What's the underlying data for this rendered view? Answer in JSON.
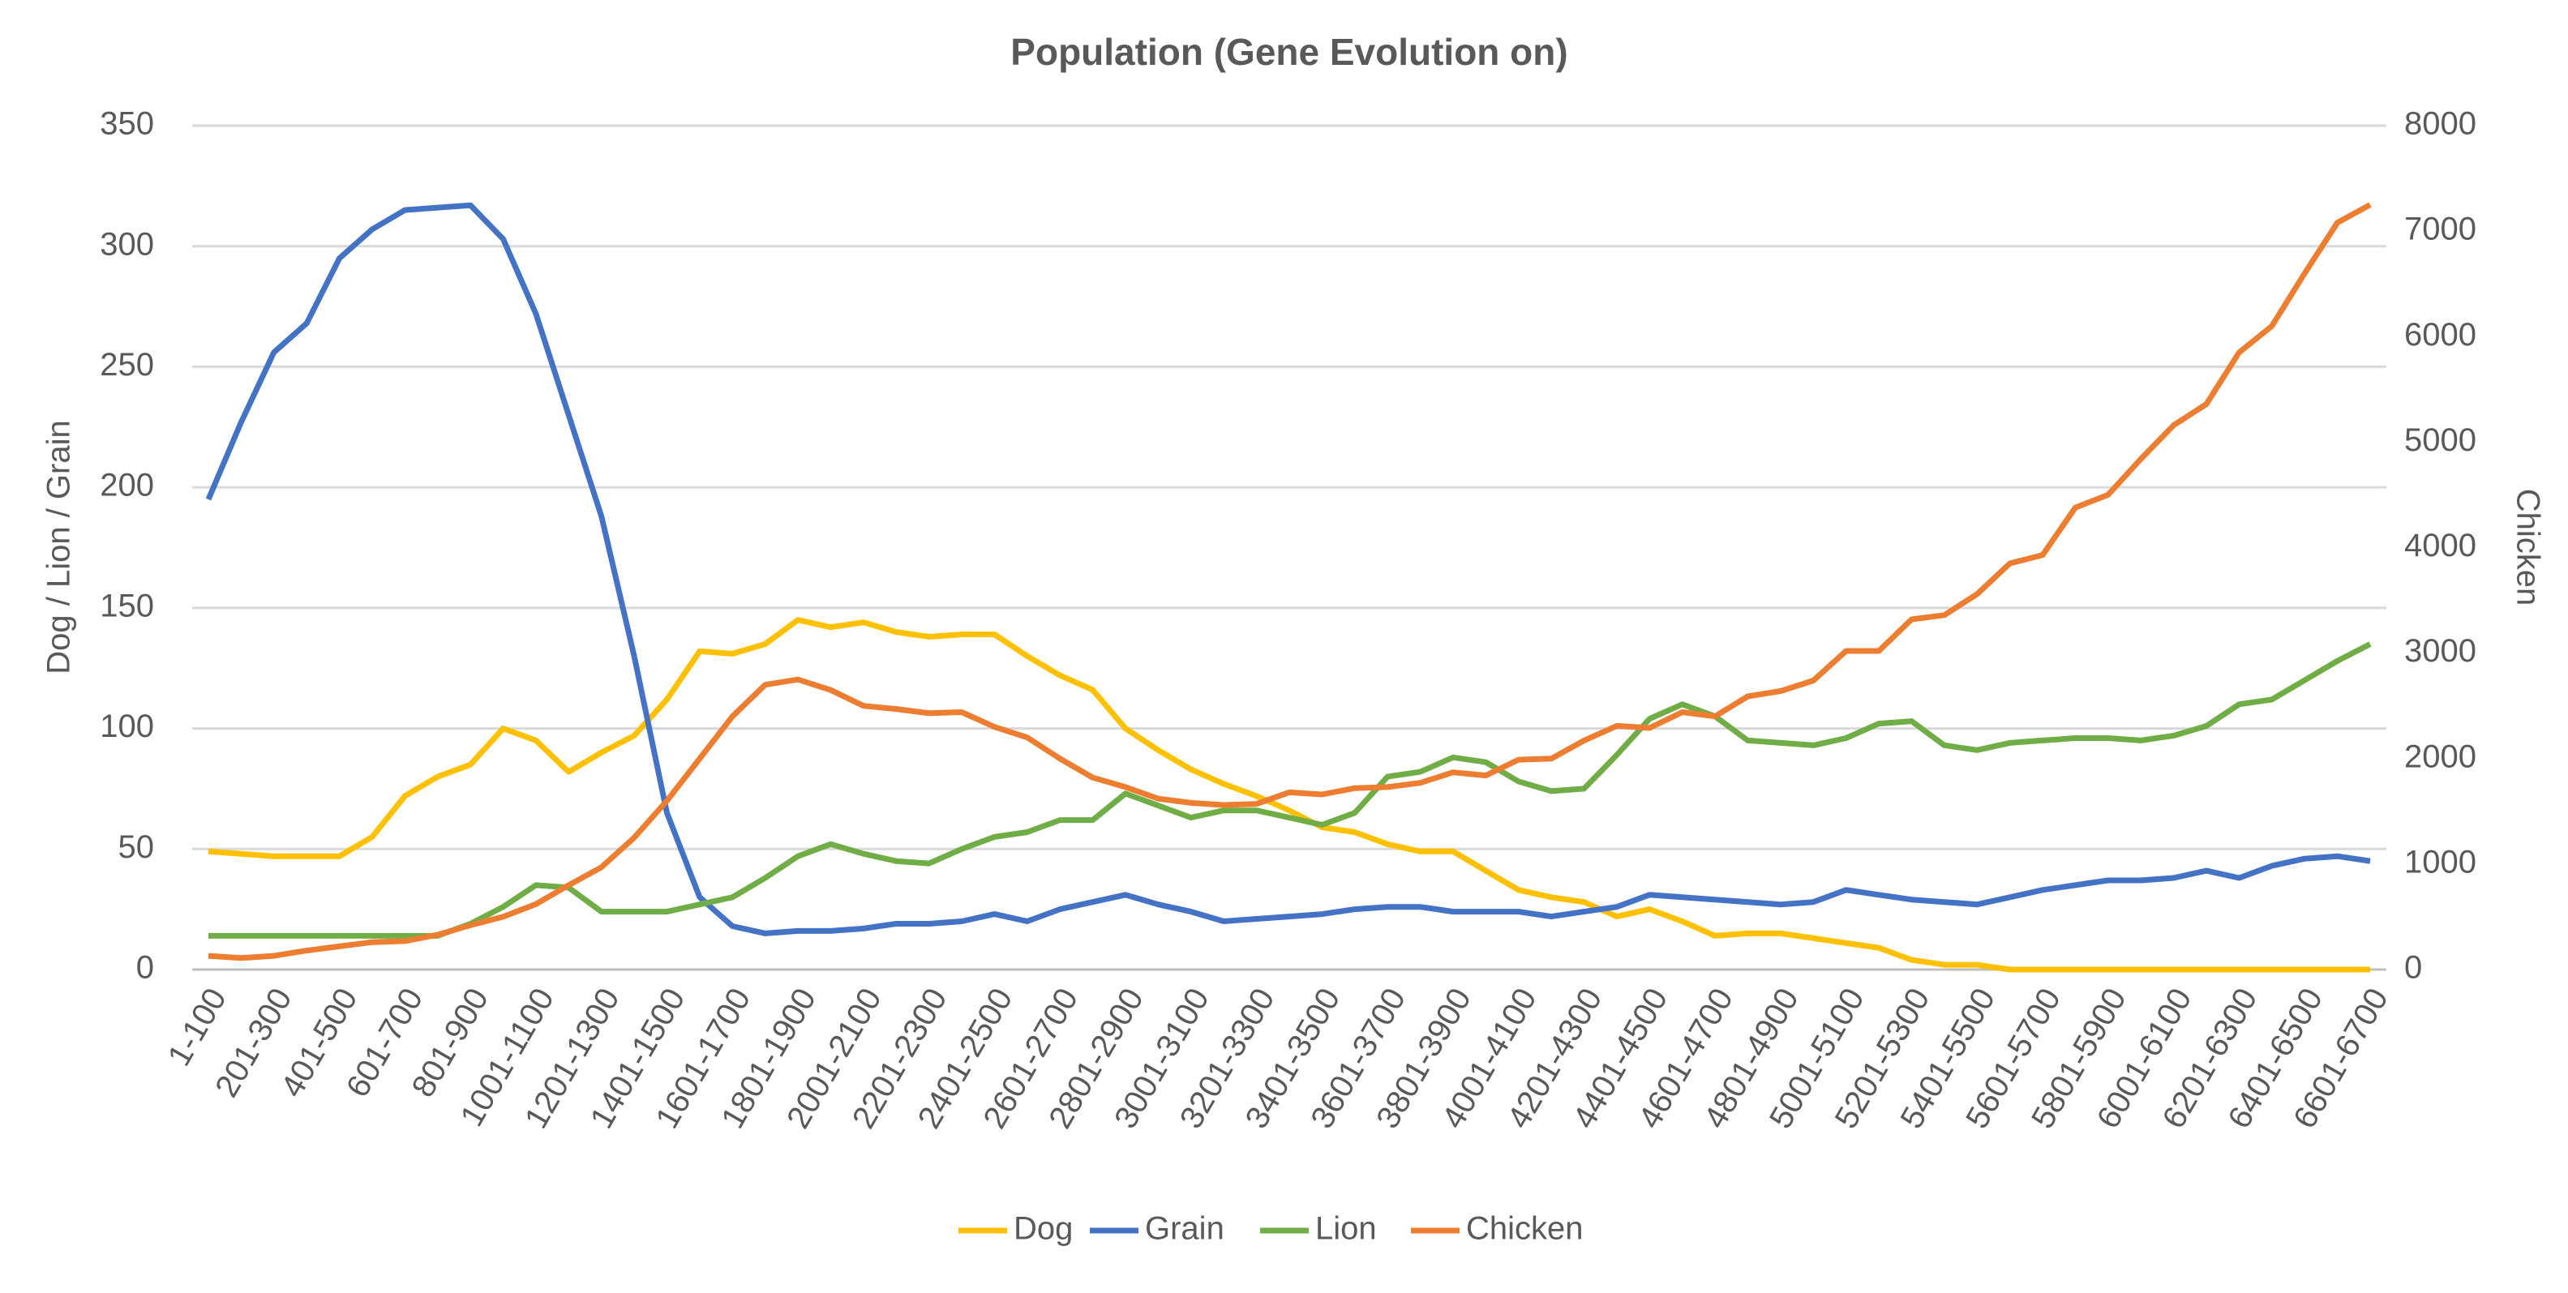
{
  "chart_data": {
    "type": "line",
    "title": "Population (Gene Evolution on)",
    "y_label": "Dog / Lion / Grain",
    "y2_label": "Chicken",
    "categories": [
      "1-100",
      null,
      "201-300",
      null,
      "401-500",
      null,
      "601-700",
      null,
      "801-900",
      null,
      "1001-1100",
      null,
      "1201-1300",
      null,
      "1401-1500",
      null,
      "1601-1700",
      null,
      "1801-1900",
      null,
      "2001-2100",
      null,
      "2201-2300",
      null,
      "2401-2500",
      null,
      "2601-2700",
      null,
      "2801-2900",
      null,
      "3001-3100",
      null,
      "3201-3300",
      null,
      "3401-3500",
      null,
      "3601-3700",
      null,
      "3801-3900",
      null,
      "4001-4100",
      null,
      "4201-4300",
      null,
      "4401-4500",
      null,
      "4601-4700",
      null,
      "4801-4900",
      null,
      "5001-5100",
      null,
      "5201-5300",
      null,
      "5401-5500",
      null,
      "5601-5700",
      null,
      "5801-5900",
      null,
      "6001-6100",
      null,
      "6201-6300",
      null,
      "6401-6500",
      null,
      "6601-6700"
    ],
    "series": [
      {
        "name": "Dog",
        "color": "#ffc000",
        "values": [
          49,
          48,
          47,
          47,
          47,
          55,
          72,
          80,
          85,
          100,
          95,
          82,
          90,
          97,
          112,
          132,
          131,
          135,
          145,
          142,
          144,
          140,
          138,
          139,
          139,
          130,
          122,
          116,
          100,
          91,
          83,
          77,
          72,
          66,
          59,
          57,
          52,
          49,
          49,
          41,
          33,
          30,
          28,
          22,
          25,
          20,
          14,
          15,
          15,
          13,
          11,
          9,
          4,
          2,
          2,
          0,
          0,
          0,
          0,
          0,
          0,
          0,
          0,
          0,
          0,
          0,
          0
        ]
      },
      {
        "name": "Grain",
        "color": "#4472c4",
        "values": [
          195,
          227,
          256,
          268,
          295,
          307,
          315,
          316,
          317,
          303,
          272,
          230,
          188,
          130,
          65,
          30,
          18,
          15,
          16,
          16,
          17,
          19,
          19,
          20,
          23,
          20,
          25,
          28,
          31,
          27,
          24,
          20,
          21,
          22,
          23,
          25,
          26,
          26,
          24,
          24,
          24,
          22,
          24,
          26,
          31,
          30,
          29,
          28,
          27,
          28,
          33,
          31,
          29,
          28,
          27,
          30,
          33,
          35,
          37,
          37,
          38,
          41,
          38,
          43,
          46,
          47,
          45
        ]
      },
      {
        "name": "Lion",
        "color": "#70ad47",
        "values": [
          14,
          14,
          14,
          14,
          14,
          14,
          14,
          14,
          19,
          26,
          35,
          34,
          24,
          24,
          24,
          27,
          30,
          38,
          47,
          52,
          48,
          45,
          44,
          50,
          55,
          57,
          62,
          62,
          73,
          68,
          63,
          66,
          66,
          63,
          60,
          65,
          80,
          82,
          88,
          86,
          78,
          74,
          75,
          89,
          104,
          110,
          105,
          95,
          94,
          93,
          96,
          102,
          103,
          93,
          91,
          94,
          95,
          96,
          96,
          95,
          97,
          101,
          110,
          112,
          120,
          128,
          135
        ]
      },
      {
        "name": "Chicken",
        "color": "#ed7d31",
        "axis": "y2",
        "values": [
          130,
          110,
          130,
          180,
          220,
          260,
          270,
          330,
          420,
          500,
          620,
          800,
          970,
          1250,
          1600,
          2000,
          2400,
          2700,
          2750,
          2650,
          2500,
          2470,
          2430,
          2440,
          2300,
          2200,
          2000,
          1820,
          1730,
          1620,
          1580,
          1560,
          1570,
          1680,
          1660,
          1720,
          1730,
          1770,
          1870,
          1840,
          1990,
          2000,
          2170,
          2310,
          2290,
          2440,
          2400,
          2590,
          2640,
          2740,
          3020,
          3020,
          3320,
          3360,
          3560,
          3850,
          3930,
          4380,
          4500,
          4840,
          5160,
          5360,
          5850,
          6100,
          6600,
          7080,
          7250
        ]
      }
    ],
    "ylim": [
      0,
      350
    ],
    "yticks": [
      0,
      50,
      100,
      150,
      200,
      250,
      300,
      350
    ],
    "y2lim": [
      0,
      8000
    ],
    "y2ticks": [
      0,
      1000,
      2000,
      3000,
      4000,
      5000,
      6000,
      7000,
      8000
    ],
    "grid": true,
    "legend": "bottom"
  }
}
